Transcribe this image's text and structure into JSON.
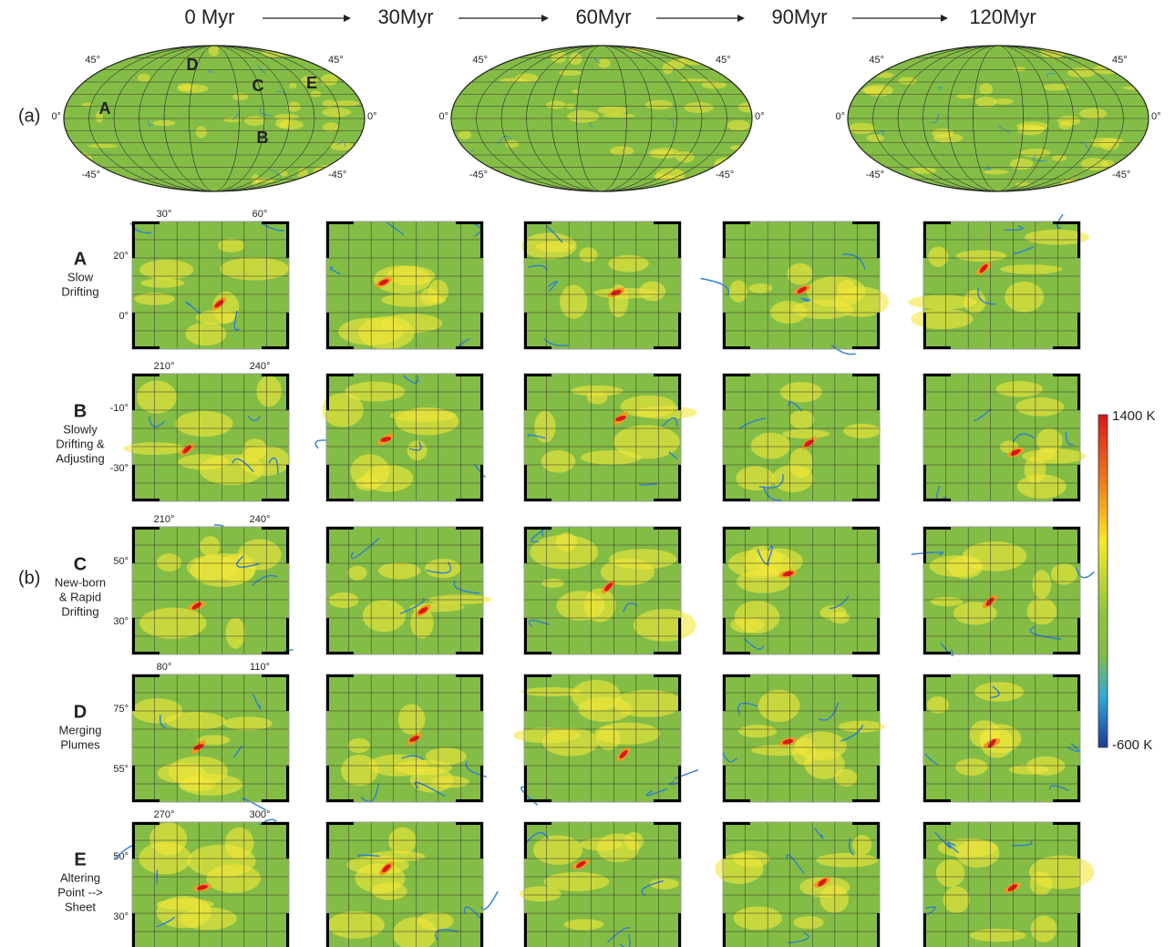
{
  "timeline": [
    "0 Myr",
    "30Myr",
    "60Myr",
    "90Myr",
    "120Myr"
  ],
  "panel_a_label": "(a)",
  "panel_b_label": "(b)",
  "maps": [
    {
      "lat_labels_left": [
        "45°",
        "0°",
        "-45°"
      ],
      "lat_labels_right": [
        "45°",
        "0°",
        "-45°"
      ],
      "markers": [
        "A",
        "B",
        "C",
        "D",
        "E"
      ]
    },
    {
      "lat_labels_left": [
        "45°",
        "0°",
        "-45°"
      ],
      "lat_labels_right": [
        "45°",
        "0°",
        "-45°"
      ],
      "markers": []
    },
    {
      "lat_labels_left": [
        "45°",
        "0°",
        "-45°"
      ],
      "lat_labels_right": [
        "45°",
        "0°",
        "-45°"
      ],
      "markers": []
    }
  ],
  "rows": [
    {
      "letter": "A",
      "description": [
        "Slow",
        "Drifting"
      ],
      "lon_labels": [
        "30°",
        "60°"
      ],
      "lat_labels": [
        "20°",
        "0°"
      ]
    },
    {
      "letter": "B",
      "description": [
        "Slowly",
        "Drifting &",
        "Adjusting"
      ],
      "lon_labels": [
        "210°",
        "240°"
      ],
      "lat_labels": [
        "-10°",
        "-30°"
      ]
    },
    {
      "letter": "C",
      "description": [
        "New-born",
        "& Rapid",
        "Drifting"
      ],
      "lon_labels": [
        "210°",
        "240°"
      ],
      "lat_labels": [
        "50°",
        "30°"
      ]
    },
    {
      "letter": "D",
      "description": [
        "Merging",
        "Plumes"
      ],
      "lon_labels": [
        "80°",
        "110°"
      ],
      "lat_labels": [
        "75°",
        "55°"
      ]
    },
    {
      "letter": "E",
      "description": [
        "Altering",
        "Point -->",
        "Sheet"
      ],
      "lon_labels": [
        "270°",
        "300°"
      ],
      "lat_labels": [
        "50°",
        "30°"
      ]
    }
  ],
  "colorbar": {
    "max_label": "1400 K",
    "min_label": "-600 K"
  }
}
